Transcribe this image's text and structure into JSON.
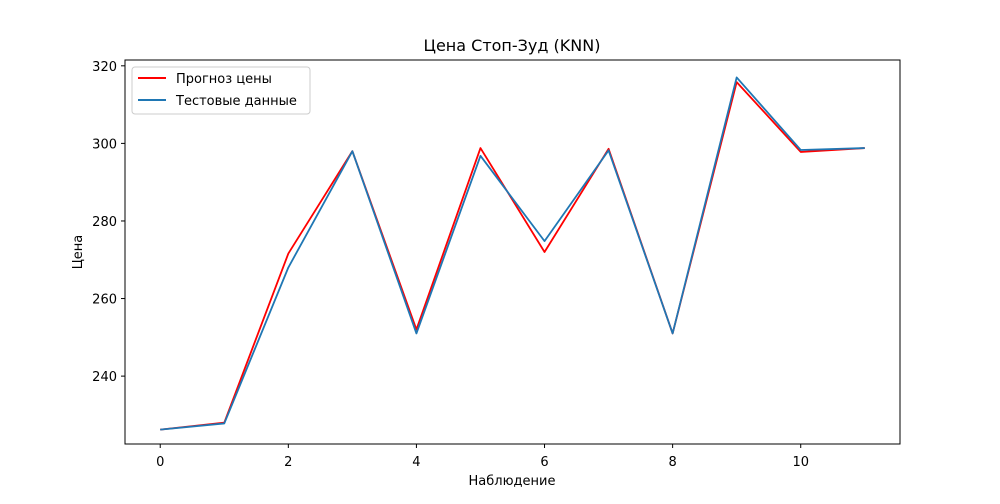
{
  "chart_data": {
    "type": "line",
    "title": "Цена Стоп-Зуд (KNN)",
    "xlabel": "Наблюдение",
    "ylabel": "Цена",
    "x": [
      0,
      1,
      2,
      3,
      4,
      5,
      6,
      7,
      8,
      9,
      10,
      11
    ],
    "xlim": [
      -0.55,
      11.55
    ],
    "ylim": [
      222.5,
      321.5
    ],
    "xticks": [
      0,
      2,
      4,
      6,
      8,
      10
    ],
    "yticks": [
      240,
      260,
      280,
      300,
      320
    ],
    "grid": false,
    "legend_position": "top-left",
    "series": [
      {
        "name": "Прогноз цены",
        "color": "#ff0000",
        "values": [
          226.2,
          228.0,
          271.6,
          298.0,
          252.0,
          298.8,
          272.0,
          298.6,
          251.0,
          315.8,
          297.8,
          298.8
        ]
      },
      {
        "name": "Тестовые данные",
        "color": "#1f77b4",
        "values": [
          226.2,
          227.8,
          268.0,
          298.0,
          251.0,
          296.8,
          274.8,
          298.2,
          251.0,
          317.0,
          298.3,
          298.8
        ]
      }
    ]
  }
}
